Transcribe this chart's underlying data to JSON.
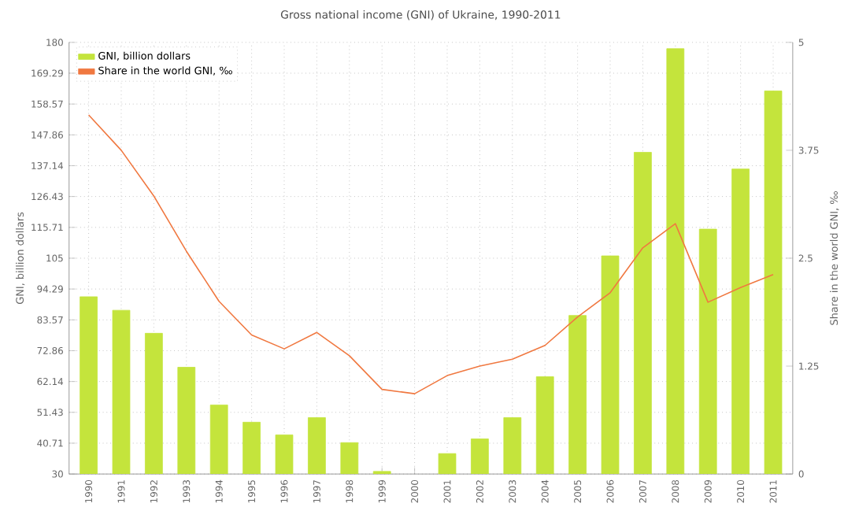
{
  "chart_data": {
    "type": "bar",
    "title": "Gross national income (GNI) of Ukraine, 1990-2011",
    "ylabel": "GNI, billion dollars",
    "y2label": "Share in the world GNI, ‰",
    "categories": [
      "1990",
      "1991",
      "1992",
      "1993",
      "1994",
      "1995",
      "1996",
      "1997",
      "1998",
      "1999",
      "2000",
      "2001",
      "2002",
      "2003",
      "2004",
      "2005",
      "2006",
      "2007",
      "2008",
      "2009",
      "2010",
      "2011"
    ],
    "series": [
      {
        "name": "GNI, billion dollars",
        "color": "#c4e43c",
        "values": [
          91.6,
          86.9,
          78.9,
          67.1,
          54,
          48,
          43.6,
          49.6,
          40.9,
          30.9,
          null,
          37.1,
          42.2,
          49.6,
          63.8,
          85.1,
          105.8,
          141.8,
          177.8,
          115.1,
          136,
          163.1
        ]
      },
      {
        "name": "Share in the world GNI, ‰",
        "type": "line",
        "axis": "y2",
        "color": "#f07840",
        "values": [
          4.16,
          3.75,
          3.22,
          2.58,
          2.0,
          1.61,
          1.45,
          1.64,
          1.37,
          0.98,
          0.93,
          1.14,
          1.25,
          1.33,
          1.49,
          1.82,
          2.1,
          2.62,
          2.9,
          1.99,
          2.16,
          2.31
        ]
      }
    ],
    "ylim": [
      30,
      180
    ],
    "yticks": [
      30,
      40.71,
      51.43,
      62.14,
      72.86,
      83.57,
      94.29,
      105,
      115.71,
      126.43,
      137.14,
      147.86,
      158.57,
      169.29,
      180
    ],
    "y2lim": [
      0,
      5
    ],
    "y2ticks": [
      0,
      1.25,
      2.5,
      3.75,
      5
    ],
    "grid": true,
    "legend": "top left",
    "marker": "none",
    "line_style": "solid"
  }
}
